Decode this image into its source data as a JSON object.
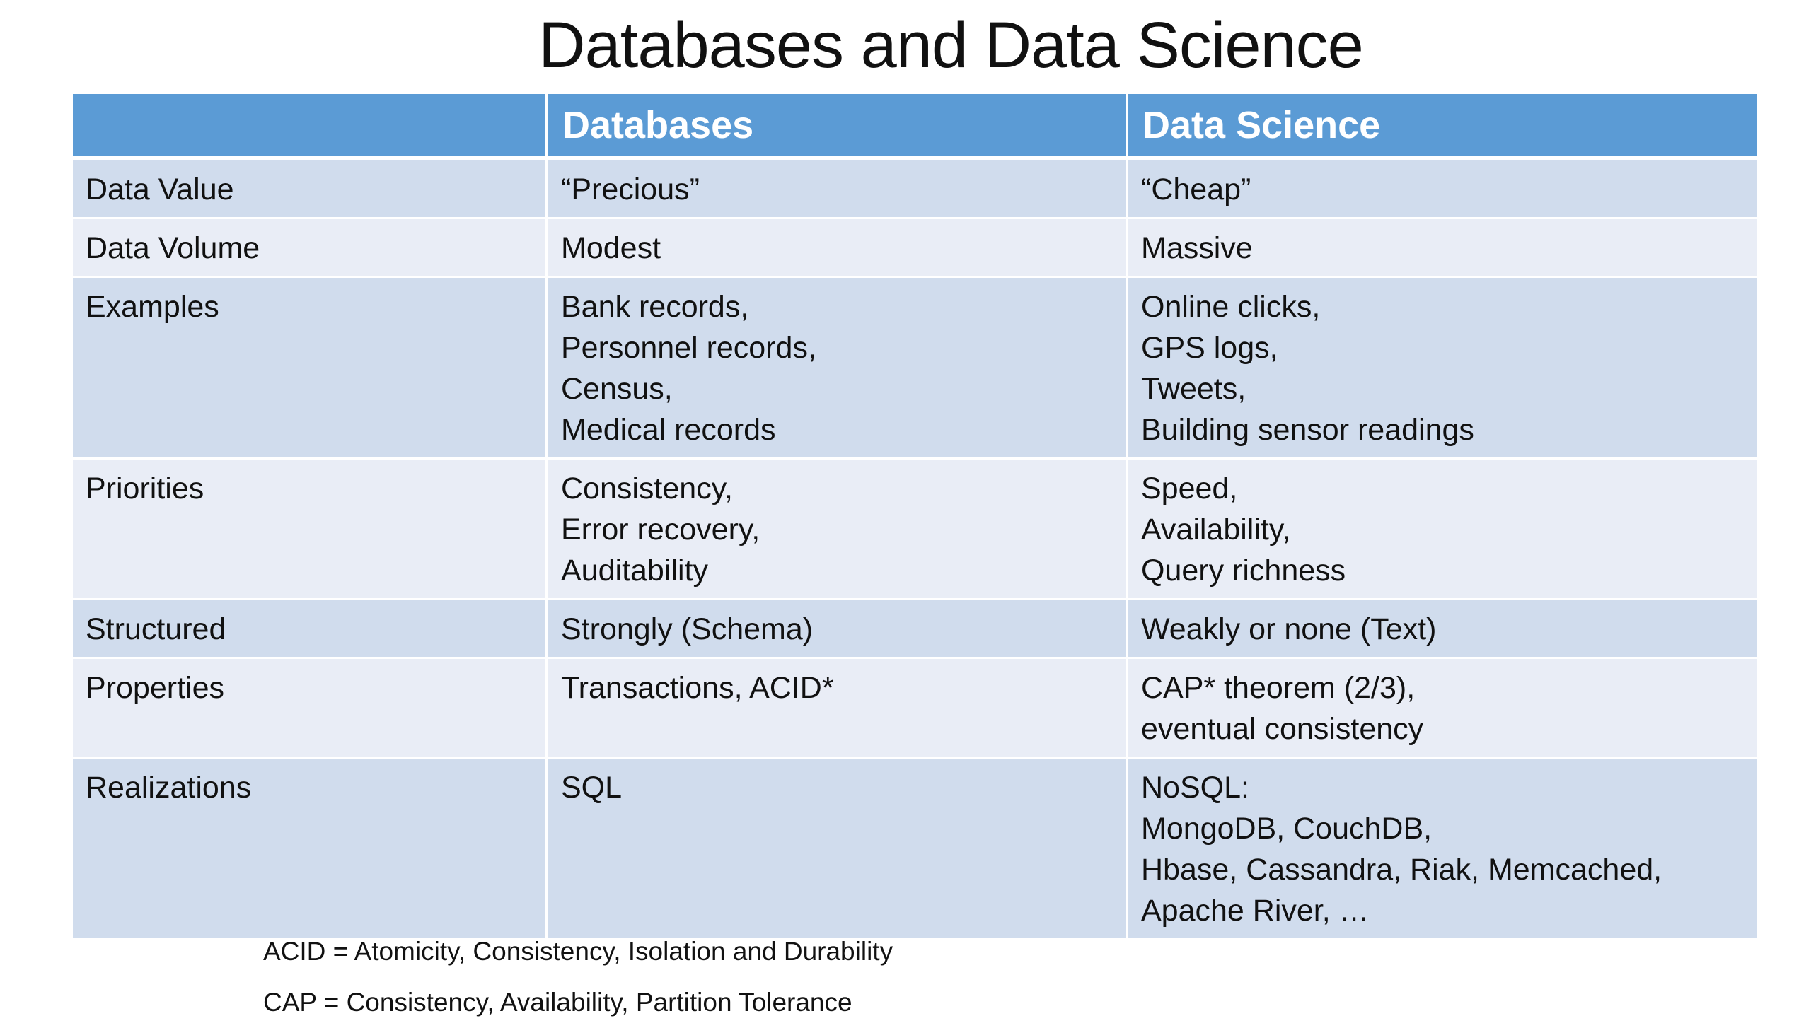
{
  "title": "Databases and Data Science",
  "table": {
    "headers": [
      "",
      "Databases",
      "Data Science"
    ],
    "rows": [
      {
        "label": "Data Value",
        "databases": "“Precious”",
        "data_science": "“Cheap”"
      },
      {
        "label": "Data Volume",
        "databases": "Modest",
        "data_science": "Massive"
      },
      {
        "label": "Examples",
        "databases": "Bank records,\nPersonnel records,\nCensus,\nMedical records",
        "data_science": "Online clicks,\nGPS logs,\nTweets,\nBuilding sensor readings"
      },
      {
        "label": "Priorities",
        "databases": "Consistency,\nError recovery,\nAuditability",
        "data_science": "Speed,\nAvailability,\nQuery richness"
      },
      {
        "label": "Structured",
        "databases": "Strongly (Schema)",
        "data_science": "Weakly or none (Text)"
      },
      {
        "label": "Properties",
        "databases": "Transactions, ACID*",
        "data_science": "CAP* theorem (2/3),\neventual consistency"
      },
      {
        "label": "Realizations",
        "databases": "SQL",
        "data_science": "NoSQL:\nMongoDB, CouchDB,\nHbase, Cassandra, Riak, Memcached,\nApache River, …"
      }
    ]
  },
  "footnotes": {
    "acid": "ACID = Atomicity, Consistency, Isolation and Durability",
    "cap": "CAP = Consistency, Availability, Partition Tolerance"
  },
  "colors": {
    "header_bg": "#5b9bd5",
    "row_band_dark": "#d0dced",
    "row_band_light": "#e9edf6"
  }
}
